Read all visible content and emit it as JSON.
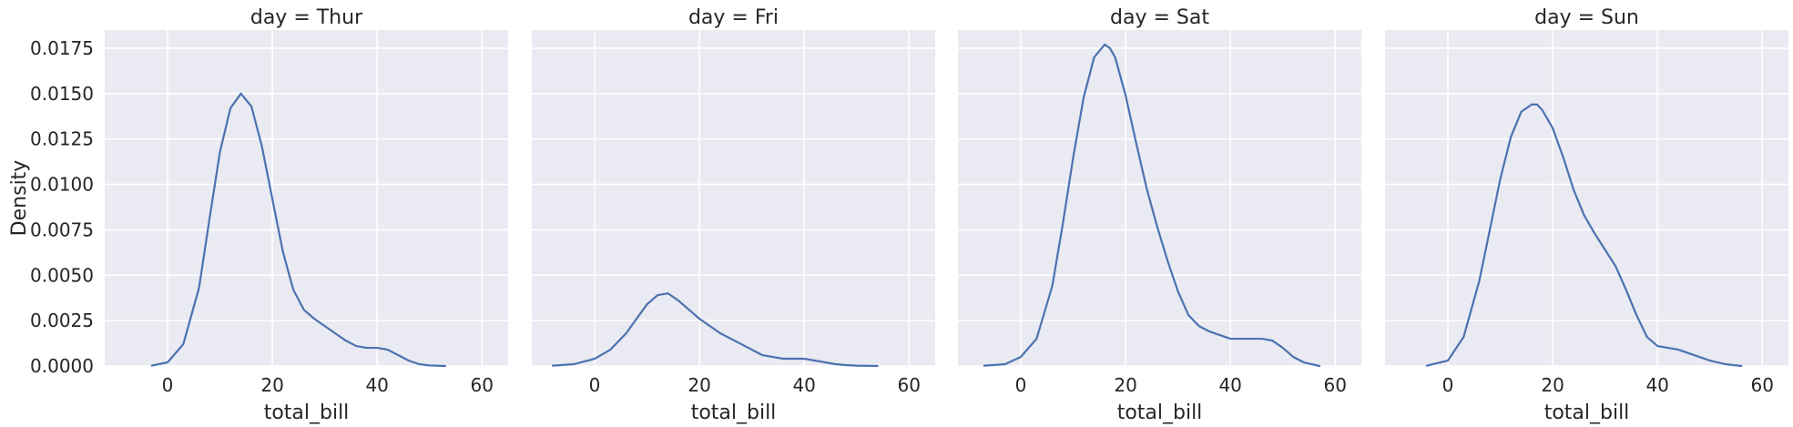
{
  "chart_data": {
    "type": "line",
    "subtype": "kde-facet-grid",
    "facet_variable": "day",
    "xlabel": "total_bill",
    "ylabel": "Density",
    "xlim": [
      -12,
      65
    ],
    "ylim": [
      0,
      0.0185
    ],
    "xticks": [
      0,
      20,
      40,
      60
    ],
    "yticks": [
      0.0,
      0.0025,
      0.005,
      0.0075,
      0.01,
      0.0125,
      0.015,
      0.0175
    ],
    "ytick_labels": [
      "0.0000",
      "0.0025",
      "0.0050",
      "0.0075",
      "0.0100",
      "0.0125",
      "0.0150",
      "0.0175"
    ],
    "grid": true,
    "line_color": "#4c72b0",
    "background_color": "#eaeaf2",
    "panels": [
      {
        "title": "day = Thur",
        "x": [
          -3,
          0,
          3,
          6,
          8,
          10,
          12,
          14,
          16,
          18,
          20,
          22,
          24,
          26,
          28,
          30,
          32,
          34,
          36,
          38,
          40,
          42,
          44,
          46,
          48,
          50,
          53
        ],
        "y": [
          2e-05,
          0.0002,
          0.0012,
          0.0043,
          0.0081,
          0.0118,
          0.0142,
          0.015,
          0.0143,
          0.0121,
          0.0092,
          0.0063,
          0.0042,
          0.0031,
          0.0026,
          0.0022,
          0.0018,
          0.0014,
          0.0011,
          0.001,
          0.001,
          0.0009,
          0.0006,
          0.0003,
          0.0001,
          3e-05,
          0.0
        ]
      },
      {
        "title": "day = Fri",
        "x": [
          -8,
          -4,
          0,
          3,
          6,
          8,
          10,
          12,
          14,
          16,
          18,
          20,
          22,
          24,
          26,
          28,
          30,
          32,
          34,
          36,
          38,
          40,
          42,
          44,
          46,
          48,
          50,
          54
        ],
        "y": [
          2e-05,
          0.0001,
          0.0004,
          0.0009,
          0.0018,
          0.0026,
          0.0034,
          0.0039,
          0.004,
          0.0036,
          0.0031,
          0.0026,
          0.0022,
          0.0018,
          0.0015,
          0.0012,
          0.0009,
          0.0006,
          0.0005,
          0.0004,
          0.0004,
          0.0004,
          0.0003,
          0.0002,
          0.0001,
          5e-05,
          2e-05,
          0.0
        ]
      },
      {
        "title": "day = Sat",
        "x": [
          -7,
          -3,
          0,
          3,
          6,
          8,
          10,
          12,
          14,
          16,
          17,
          18,
          20,
          22,
          24,
          26,
          28,
          30,
          32,
          34,
          36,
          38,
          40,
          42,
          44,
          46,
          48,
          50,
          52,
          54,
          57
        ],
        "y": [
          2e-05,
          0.0001,
          0.0005,
          0.0015,
          0.0044,
          0.0078,
          0.0115,
          0.0148,
          0.017,
          0.0177,
          0.0175,
          0.017,
          0.0149,
          0.0123,
          0.0098,
          0.0077,
          0.0058,
          0.0041,
          0.0028,
          0.0022,
          0.0019,
          0.0017,
          0.0015,
          0.0015,
          0.0015,
          0.0015,
          0.0014,
          0.001,
          0.0005,
          0.0002,
          0.0
        ]
      },
      {
        "title": "day = Sun",
        "x": [
          -4,
          0,
          3,
          6,
          8,
          10,
          12,
          14,
          16,
          17,
          18,
          20,
          22,
          24,
          26,
          28,
          30,
          32,
          34,
          36,
          38,
          40,
          42,
          44,
          46,
          48,
          50,
          53,
          56
        ],
        "y": [
          2e-05,
          0.0003,
          0.0016,
          0.0047,
          0.0075,
          0.0103,
          0.0126,
          0.014,
          0.0144,
          0.0144,
          0.0141,
          0.0131,
          0.0115,
          0.0097,
          0.0083,
          0.0073,
          0.0064,
          0.0055,
          0.0042,
          0.0028,
          0.0016,
          0.0011,
          0.001,
          0.0009,
          0.0007,
          0.0005,
          0.0003,
          0.0001,
          0.0
        ]
      }
    ]
  }
}
